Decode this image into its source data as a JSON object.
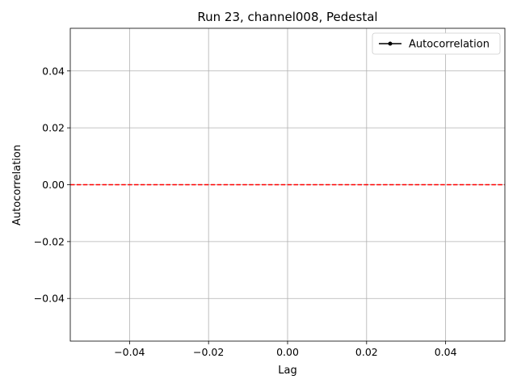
{
  "chart_data": {
    "type": "line",
    "title": "Run 23, channel008, Pedestal",
    "x_label": "Lag",
    "y_label": "Autocorrelation",
    "x": [],
    "series": [
      {
        "name": "Autocorrelation",
        "color": "#000000",
        "values": []
      }
    ],
    "hline": {
      "value": 0,
      "color": "#ff0000",
      "style": "dashed"
    },
    "xlim": [
      -0.055,
      0.055
    ],
    "ylim": [
      -0.055,
      0.055
    ],
    "xticks": [
      {
        "value": -0.04,
        "label": "−0.04"
      },
      {
        "value": -0.02,
        "label": "−0.02"
      },
      {
        "value": 0,
        "label": "0.00"
      },
      0.02,
      0.04
    ],
    "yticks": [
      {
        "value": -0.04,
        "label": "−0.04"
      },
      {
        "value": -0.02,
        "label": "−0.02"
      },
      {
        "value": 0,
        "label": "0.00"
      },
      0.02,
      0.04
    ],
    "grid": true,
    "legend": "upper right"
  }
}
